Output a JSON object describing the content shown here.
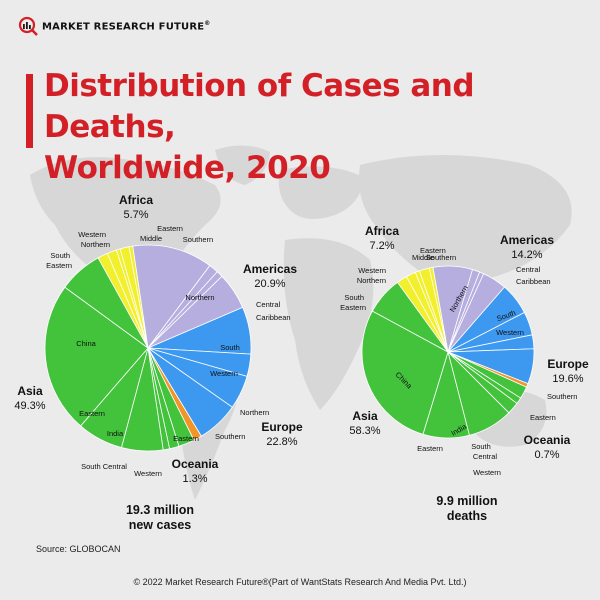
{
  "brand": {
    "name": "MARKET RESEARCH FUTURE",
    "reg": "®"
  },
  "title": {
    "line1": "Distribution of Cases and Deaths,",
    "line2": "Worldwide, 2020"
  },
  "source": "Source: GLOBOCAN",
  "copyright": "© 2022 Market Research Future®(Part of WantStats Research And Media Pvt. Ltd.)",
  "colors": {
    "Africa": "#f2ef2d",
    "Americas": "#b7aee0",
    "Europe": "#3d98f0",
    "Oceania": "#f0952a",
    "Asia": "#43c23c",
    "divider": "#ffffff",
    "title": "#d32027"
  },
  "chart_data": [
    {
      "type": "pie",
      "title": "",
      "total_label": [
        "19.3 million",
        "new cases"
      ],
      "series": [
        {
          "region": "Africa",
          "name": "Africa",
          "value_label": "5.7%",
          "value": 5.7
        },
        {
          "region": "Americas",
          "name": "Americas",
          "value_label": "20.9%",
          "value": 20.9
        },
        {
          "region": "Europe",
          "name": "Europe",
          "value_label": "22.8%",
          "value": 22.8
        },
        {
          "region": "Oceania",
          "name": "Oceania",
          "value_label": "1.3%",
          "value": 1.3
        },
        {
          "region": "Asia",
          "name": "Asia",
          "value_label": "49.3%",
          "value": 49.3
        }
      ],
      "subregions": [
        {
          "region": "Africa",
          "name": "Western",
          "value": 1.6
        },
        {
          "region": "Africa",
          "name": "Northern",
          "value": 1.5
        },
        {
          "region": "Africa",
          "name": "Middle",
          "value": 0.6
        },
        {
          "region": "Africa",
          "name": "Eastern",
          "value": 1.4
        },
        {
          "region": "Africa",
          "name": "Southern",
          "value": 0.6
        },
        {
          "region": "Americas",
          "name": "Northern",
          "value": 12.6
        },
        {
          "region": "Americas",
          "name": "Central",
          "value": 1.5
        },
        {
          "region": "Americas",
          "name": "Caribbean",
          "value": 1.0
        },
        {
          "region": "Americas",
          "name": "South",
          "value": 5.8
        },
        {
          "region": "Europe",
          "name": "Western",
          "value": 7.4
        },
        {
          "region": "Europe",
          "name": "Northern",
          "value": 3.5
        },
        {
          "region": "Europe",
          "name": "Southern",
          "value": 5.3
        },
        {
          "region": "Europe",
          "name": "Eastern",
          "value": 6.6
        },
        {
          "region": "Oceania",
          "name": "",
          "value": 1.3
        },
        {
          "region": "Asia",
          "name": "Western",
          "value": 2.5
        },
        {
          "region": "Asia",
          "name": "South Central",
          "value": 1.5
        },
        {
          "region": "Asia",
          "name": "",
          "value": 1.0
        },
        {
          "region": "Asia",
          "name": "India",
          "value": 6.5
        },
        {
          "region": "Asia",
          "name": "Eastern",
          "value": 7.2
        },
        {
          "region": "Asia",
          "name": "China",
          "value": 23.7
        },
        {
          "region": "Asia",
          "name": "South Eastern",
          "value": 6.9
        }
      ]
    },
    {
      "type": "pie",
      "title": "",
      "total_label": [
        "9.9 million",
        "deaths"
      ],
      "series": [
        {
          "region": "Africa",
          "name": "Africa",
          "value_label": "7.2%",
          "value": 7.2
        },
        {
          "region": "Americas",
          "name": "Americas",
          "value_label": "14.2%",
          "value": 14.2
        },
        {
          "region": "Europe",
          "name": "Europe",
          "value_label": "19.6%",
          "value": 19.6
        },
        {
          "region": "Oceania",
          "name": "Oceania",
          "value_label": "0.7%",
          "value": 0.7
        },
        {
          "region": "Asia",
          "name": "Asia",
          "value_label": "58.3%",
          "value": 58.3
        }
      ],
      "subregions": [
        {
          "region": "Africa",
          "name": "Western",
          "value": 2.0
        },
        {
          "region": "Africa",
          "name": "Northern",
          "value": 1.8
        },
        {
          "region": "Africa",
          "name": "Middle",
          "value": 0.8
        },
        {
          "region": "Africa",
          "name": "Eastern",
          "value": 1.9
        },
        {
          "region": "Africa",
          "name": "Southern",
          "value": 0.7
        },
        {
          "region": "Americas",
          "name": "Northern",
          "value": 7.4
        },
        {
          "region": "Americas",
          "name": "Central",
          "value": 1.4
        },
        {
          "region": "Americas",
          "name": "Caribbean",
          "value": 0.8
        },
        {
          "region": "Americas",
          "name": "South",
          "value": 4.6
        },
        {
          "region": "Europe",
          "name": "Western",
          "value": 6.0
        },
        {
          "region": "Europe",
          "name": "Southern",
          "value": 4.4
        },
        {
          "region": "Europe",
          "name": "Northern",
          "value": 2.6
        },
        {
          "region": "Europe",
          "name": "Eastern",
          "value": 6.6
        },
        {
          "region": "Oceania",
          "name": "",
          "value": 0.7
        },
        {
          "region": "Asia",
          "name": "Western",
          "value": 2.3
        },
        {
          "region": "Asia",
          "name": "Central",
          "value": 1.2
        },
        {
          "region": "Asia",
          "name": "South",
          "value": 2.3
        },
        {
          "region": "Asia",
          "name": "India",
          "value": 8.5
        },
        {
          "region": "Asia",
          "name": "Eastern",
          "value": 8.7
        },
        {
          "region": "Asia",
          "name": "China",
          "value": 28.2
        },
        {
          "region": "Asia",
          "name": "South Eastern",
          "value": 7.1
        }
      ]
    }
  ]
}
